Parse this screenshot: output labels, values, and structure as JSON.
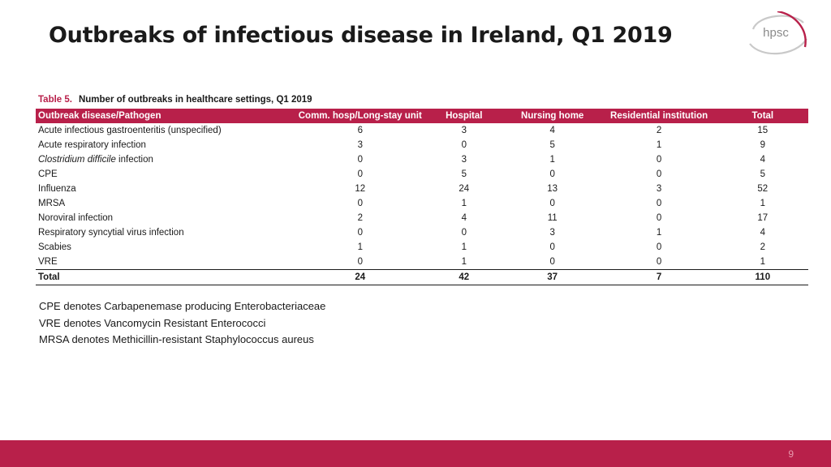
{
  "header": {
    "title": "Outbreaks of infectious disease in Ireland, Q1 2019",
    "logo_text": "hpsc",
    "brand_color": "#b8204a"
  },
  "table": {
    "caption_num": "Table 5.",
    "caption_text": "Number of outbreaks in healthcare settings, Q1 2019",
    "headers": [
      "Outbreak disease/Pathogen",
      "Comm. hosp/Long-stay unit",
      "Hospital",
      "Nursing home",
      "Residential institution",
      "Total"
    ],
    "rows": [
      {
        "name": "Acute infectious gastroenteritis (unspecified)",
        "name_italic": "",
        "values": [
          "6",
          "3",
          "4",
          "2",
          "15"
        ]
      },
      {
        "name": "Acute respiratory infection",
        "name_italic": "",
        "values": [
          "3",
          "0",
          "5",
          "1",
          "9"
        ]
      },
      {
        "name": " infection",
        "name_italic": "Clostridium difficile",
        "values": [
          "0",
          "3",
          "1",
          "0",
          "4"
        ]
      },
      {
        "name": "CPE",
        "name_italic": "",
        "values": [
          "0",
          "5",
          "0",
          "0",
          "5"
        ]
      },
      {
        "name": "Influenza",
        "name_italic": "",
        "values": [
          "12",
          "24",
          "13",
          "3",
          "52"
        ]
      },
      {
        "name": "MRSA",
        "name_italic": "",
        "values": [
          "0",
          "1",
          "0",
          "0",
          "1"
        ]
      },
      {
        "name": "Noroviral infection",
        "name_italic": "",
        "values": [
          "2",
          "4",
          "11",
          "0",
          "17"
        ]
      },
      {
        "name": "Respiratory syncytial virus infection",
        "name_italic": "",
        "values": [
          "0",
          "0",
          "3",
          "1",
          "4"
        ]
      },
      {
        "name": "Scabies",
        "name_italic": "",
        "values": [
          "1",
          "1",
          "0",
          "0",
          "2"
        ]
      },
      {
        "name": "VRE",
        "name_italic": "",
        "values": [
          "0",
          "1",
          "0",
          "0",
          "1"
        ]
      }
    ],
    "total": {
      "name": "Total",
      "values": [
        "24",
        "42",
        "37",
        "7",
        "110"
      ]
    }
  },
  "notes": [
    "CPE denotes Carbapenemase producing Enterobacteriaceae",
    "VRE denotes Vancomycin Resistant Enterococci",
    "MRSA denotes Methicillin-resistant Staphylococcus aureus"
  ],
  "footer": {
    "page_number": "9"
  }
}
